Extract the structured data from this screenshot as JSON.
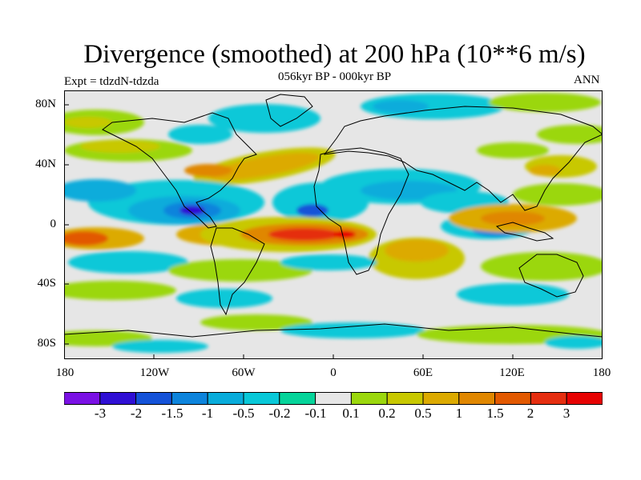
{
  "map": {
    "title": "Divergence (smoothed) at 200 hPa (10**6 m/s)",
    "subtitle": "056kyr BP - 000kyr BP",
    "left_label": "Expt = tdzdN-tdzda",
    "right_label": "ANN",
    "projection": "cylindrical equidistant",
    "lon_range": [
      -180,
      180
    ],
    "lat_range": [
      -90,
      90
    ],
    "lat_ticks": [
      "80N",
      "40N",
      "0",
      "40S",
      "80S"
    ],
    "lon_ticks": [
      "180",
      "120W",
      "60W",
      "0",
      "60E",
      "120E",
      "180"
    ],
    "background_color": "#e6e6e6"
  },
  "colorbar": {
    "labels": [
      "-3",
      "-2",
      "-1.5",
      "-1",
      "-0.5",
      "-0.2",
      "-0.1",
      "0.1",
      "0.2",
      "0.5",
      "1",
      "1.5",
      "2",
      "3"
    ],
    "colors": [
      "#7a11e4",
      "#2f0fd4",
      "#1452d8",
      "#0d84dc",
      "#08acdb",
      "#08c8d8",
      "#05d49a",
      "#e6e6e6",
      "#9bd70d",
      "#c8c800",
      "#dcaa00",
      "#e08700",
      "#e25900",
      "#e52e10",
      "#e60202"
    ]
  }
}
